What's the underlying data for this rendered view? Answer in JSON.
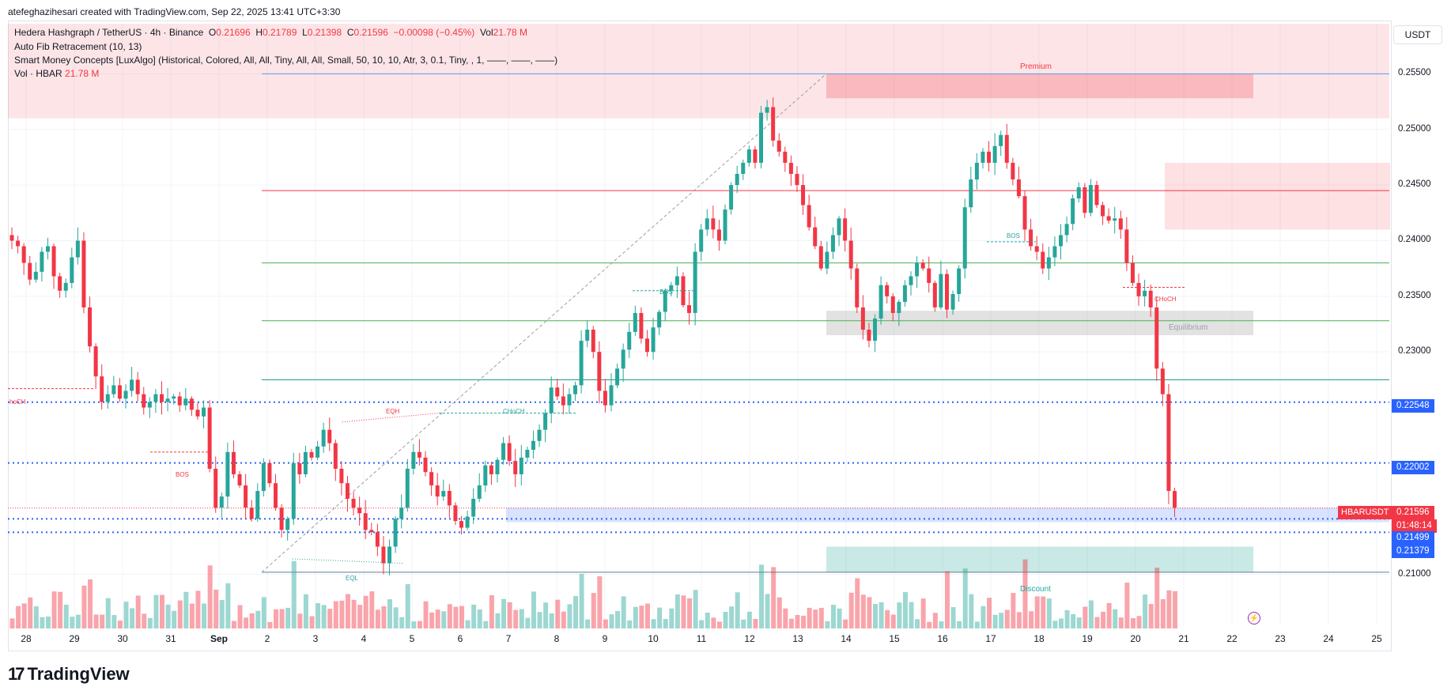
{
  "header": {
    "credit": "atefeghazihesari created with TradingView.com, Sep 22, 2025 13:41 UTC+3:30"
  },
  "legend": {
    "symbol": "Hedera Hashgraph / TetherUS · 4h · Binance",
    "o_label": "O",
    "o_value": "0.21696",
    "h_label": "H",
    "h_value": "0.21789",
    "l_label": "L",
    "l_value": "0.21398",
    "c_label": "C",
    "c_value": "0.21596",
    "change": "−0.00098 (−0.45%)",
    "vol_label": "Vol",
    "vol_value": "21.78 M",
    "indicator1": "Auto Fib Retracement (10, 13)",
    "indicator2": "Smart Money Concepts [LuxAlgo] (Historical, Colored, All, All, Tiny, All, All, Small, 50, 10, 10, Atr, 3, 0.1, Tiny, , 1, ——, ——, ——)",
    "indicator3_label": "Vol · HBAR",
    "indicator3_value": "21.78 M"
  },
  "price_axis": {
    "currency": "USDT",
    "ticks": [
      "0.25500",
      "0.25000",
      "0.24500",
      "0.24000",
      "0.23500",
      "0.23000",
      "0.21000"
    ]
  },
  "price_labels": {
    "ticker": "HBARUSDT",
    "last_price": "0.21596",
    "countdown": "01:48:14",
    "lvl_22548": "0.22548",
    "lvl_22002": "0.22002",
    "lvl_21499": "0.21499",
    "lvl_21379": "0.21379"
  },
  "time_axis": {
    "ticks": [
      "28",
      "29",
      "30",
      "31",
      "Sep",
      "2",
      "3",
      "4",
      "5",
      "6",
      "7",
      "8",
      "9",
      "10",
      "11",
      "12",
      "13",
      "14",
      "15",
      "16",
      "17",
      "18",
      "19",
      "20",
      "21",
      "22",
      "23",
      "24",
      "25"
    ]
  },
  "annotations": {
    "premium": "Premium",
    "equilibrium": "Equilibrium",
    "discount": "Discount",
    "bos": "BOS",
    "choch": "CHoCH",
    "eqh": "EQH",
    "eql": "EQL",
    "choch_left": "hoCH"
  },
  "colors": {
    "up": "#26a69a",
    "down": "#f23645",
    "blue": "#2962ff"
  },
  "brand": {
    "name": "TradingView"
  },
  "chart_data": {
    "type": "candlestick",
    "title": "Hedera Hashgraph / TetherUS · 4h · Binance",
    "ylim": [
      0.2055,
      0.2595
    ],
    "x_categories": [
      "28",
      "29",
      "30",
      "31",
      "Sep",
      "2",
      "3",
      "4",
      "5",
      "6",
      "7",
      "8",
      "9",
      "10",
      "11",
      "12",
      "13",
      "14",
      "15",
      "16",
      "17",
      "18",
      "19",
      "20",
      "21",
      "22",
      "23",
      "24",
      "25"
    ],
    "close_series": [
      0.24,
      0.2395,
      0.238,
      0.2365,
      0.2372,
      0.239,
      0.2395,
      0.2368,
      0.2355,
      0.2362,
      0.2385,
      0.24,
      0.234,
      0.2305,
      0.2278,
      0.2255,
      0.2262,
      0.227,
      0.2258,
      0.2265,
      0.2275,
      0.2262,
      0.225,
      0.2255,
      0.2262,
      0.2255,
      0.2258,
      0.226,
      0.2252,
      0.2258,
      0.2248,
      0.2242,
      0.225,
      0.2195,
      0.216,
      0.217,
      0.221,
      0.219,
      0.218,
      0.216,
      0.215,
      0.2175,
      0.22,
      0.2182,
      0.216,
      0.214,
      0.215,
      0.22,
      0.219,
      0.221,
      0.2205,
      0.2215,
      0.223,
      0.2218,
      0.2195,
      0.2182,
      0.2168,
      0.216,
      0.2155,
      0.214,
      0.2138,
      0.2125,
      0.211,
      0.2125,
      0.215,
      0.216,
      0.2195,
      0.221,
      0.2205,
      0.2192,
      0.218,
      0.217,
      0.2175,
      0.2162,
      0.2148,
      0.2142,
      0.2152,
      0.2168,
      0.218,
      0.2198,
      0.219,
      0.2203,
      0.2218,
      0.2202,
      0.219,
      0.2205,
      0.2212,
      0.222,
      0.223,
      0.2245,
      0.2268,
      0.226,
      0.2252,
      0.2262,
      0.227,
      0.231,
      0.232,
      0.23,
      0.2265,
      0.2252,
      0.227,
      0.2285,
      0.2302,
      0.2318,
      0.2335,
      0.2312,
      0.23,
      0.2322,
      0.2336,
      0.2355,
      0.236,
      0.2368,
      0.2342,
      0.2335,
      0.239,
      0.241,
      0.242,
      0.241,
      0.24,
      0.2428,
      0.245,
      0.246,
      0.247,
      0.2482,
      0.247,
      0.2515,
      0.252,
      0.249,
      0.248,
      0.247,
      0.246,
      0.245,
      0.2432,
      0.2412,
      0.2395,
      0.2375,
      0.239,
      0.2405,
      0.242,
      0.24,
      0.2375,
      0.234,
      0.232,
      0.231,
      0.233,
      0.236,
      0.235,
      0.2335,
      0.2345,
      0.236,
      0.2368,
      0.238,
      0.2375,
      0.2362,
      0.234,
      0.237,
      0.2338,
      0.2352,
      0.2375,
      0.243,
      0.2455,
      0.247,
      0.248,
      0.247,
      0.2485,
      0.2495,
      0.247,
      0.2455,
      0.244,
      0.241,
      0.2395,
      0.239,
      0.2375,
      0.2385,
      0.2395,
      0.2405,
      0.2415,
      0.2438,
      0.2448,
      0.2425,
      0.245,
      0.2432,
      0.2422,
      0.2418,
      0.242,
      0.241,
      0.238,
      0.2362,
      0.235,
      0.2355,
      0.234,
      0.2285,
      0.2262,
      0.2175,
      0.216
    ]
  }
}
